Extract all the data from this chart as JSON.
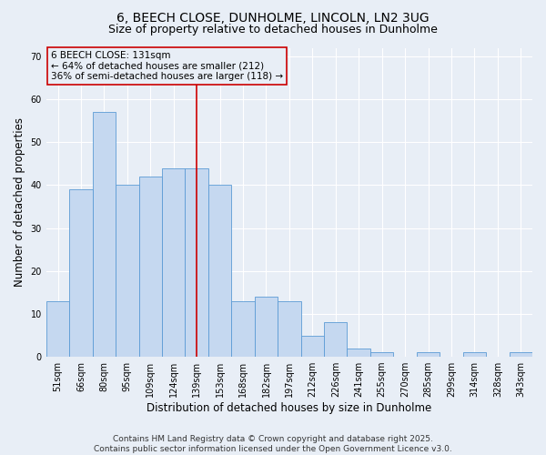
{
  "title_line1": "6, BEECH CLOSE, DUNHOLME, LINCOLN, LN2 3UG",
  "title_line2": "Size of property relative to detached houses in Dunholme",
  "xlabel": "Distribution of detached houses by size in Dunholme",
  "ylabel": "Number of detached properties",
  "categories": [
    "51sqm",
    "66sqm",
    "80sqm",
    "95sqm",
    "109sqm",
    "124sqm",
    "139sqm",
    "153sqm",
    "168sqm",
    "182sqm",
    "197sqm",
    "212sqm",
    "226sqm",
    "241sqm",
    "255sqm",
    "270sqm",
    "285sqm",
    "299sqm",
    "314sqm",
    "328sqm",
    "343sqm"
  ],
  "values": [
    13,
    39,
    57,
    40,
    42,
    44,
    44,
    40,
    13,
    14,
    13,
    5,
    8,
    2,
    1,
    0,
    1,
    0,
    1,
    0,
    1
  ],
  "bar_color": "#c5d8f0",
  "bar_edge_color": "#5b9bd5",
  "vline_x_index": 6,
  "vline_color": "#cc0000",
  "annotation_text": "6 BEECH CLOSE: 131sqm\n← 64% of detached houses are smaller (212)\n36% of semi-detached houses are larger (118) →",
  "annotation_box_color": "#cc0000",
  "annotation_text_color": "#000000",
  "ylim": [
    0,
    72
  ],
  "yticks": [
    0,
    10,
    20,
    30,
    40,
    50,
    60,
    70
  ],
  "background_color": "#e8eef6",
  "grid_color": "#ffffff",
  "footer_line1": "Contains HM Land Registry data © Crown copyright and database right 2025.",
  "footer_line2": "Contains public sector information licensed under the Open Government Licence v3.0.",
  "title_fontsize": 10,
  "subtitle_fontsize": 9,
  "axis_label_fontsize": 8.5,
  "tick_fontsize": 7,
  "annotation_fontsize": 7.5,
  "footer_fontsize": 6.5
}
